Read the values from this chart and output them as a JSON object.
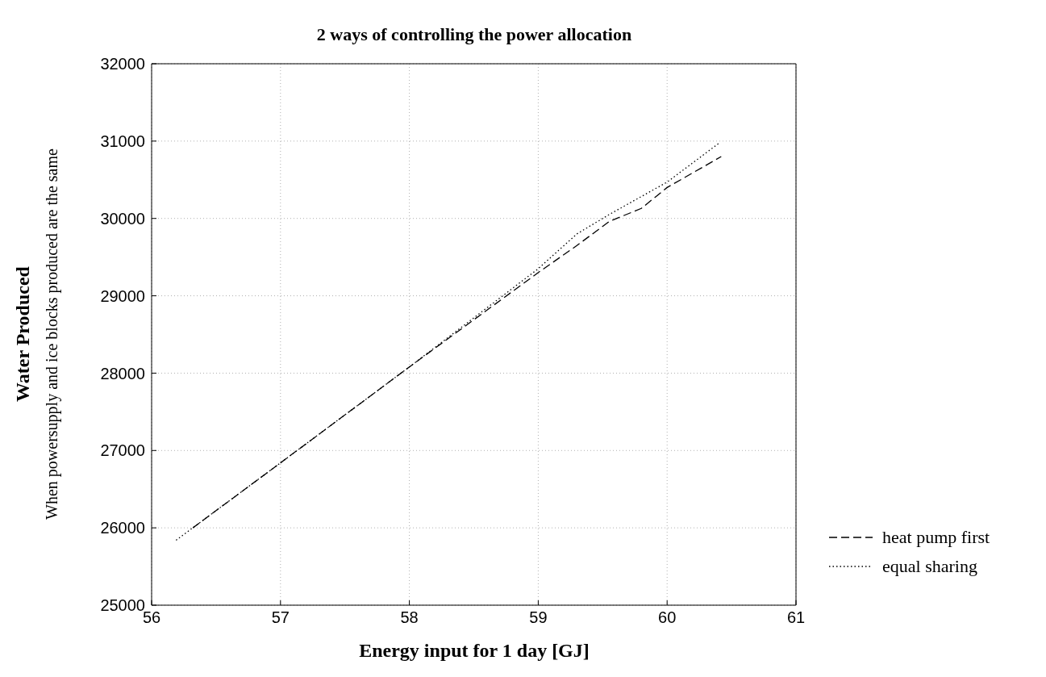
{
  "chart_data": {
    "type": "line",
    "title": "2 ways of controlling the power allocation",
    "xlabel": "Energy input for 1 day [GJ]",
    "ylabel": "Water Produced",
    "annotations": [
      "When powersupply and ice blocks produced are the same"
    ],
    "xlim": [
      56,
      61
    ],
    "xticks": [
      56,
      57,
      58,
      59,
      60,
      61
    ],
    "ylim": [
      25000,
      32000
    ],
    "yticks": [
      25000,
      26000,
      27000,
      28000,
      29000,
      30000,
      31000,
      32000
    ],
    "grid": true,
    "legend": "bottom right",
    "marker": "none",
    "series": [
      {
        "name": "heat pump first",
        "color": "#000000",
        "line_style": "dashed",
        "x": [
          56.32,
          57,
          58,
          59,
          59.3,
          59.55,
          59.8,
          60,
          60.42
        ],
        "values": [
          26000,
          26840,
          28080,
          29300,
          29650,
          29960,
          30130,
          30400,
          30800
        ]
      },
      {
        "name": "equal sharing",
        "color": "#000000",
        "line_style": "dotted",
        "x": [
          56.19,
          57,
          58,
          59,
          59.3,
          59.55,
          60,
          60.4
        ],
        "values": [
          25840,
          26840,
          28080,
          29350,
          29800,
          30050,
          30470,
          30970
        ]
      }
    ]
  }
}
